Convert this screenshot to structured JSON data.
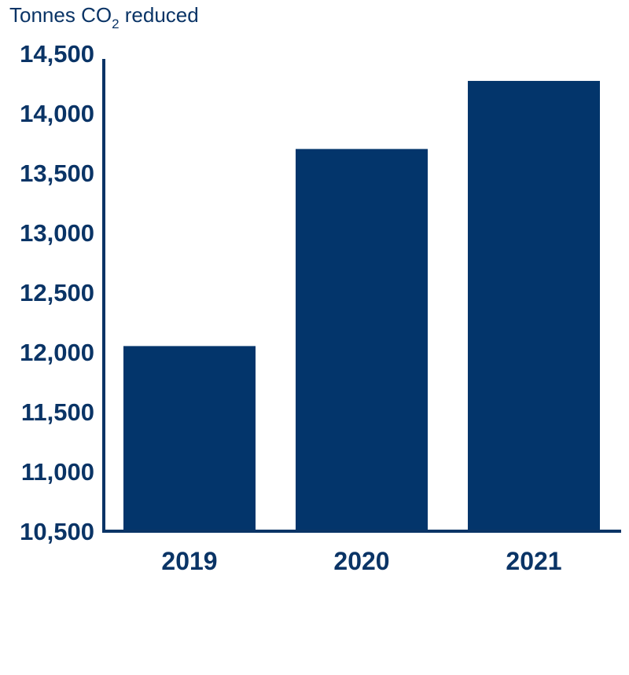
{
  "chart_data": {
    "type": "bar",
    "ylabel": {
      "prefix": "Tonnes CO",
      "subscript": "2",
      "suffix": " reduced"
    },
    "categories": [
      "2019",
      "2020",
      "2021"
    ],
    "values": [
      12050,
      13700,
      14270
    ],
    "ylim": [
      10500,
      14500
    ],
    "yticks": [
      10500,
      11000,
      11500,
      12000,
      12500,
      13000,
      13500,
      14000,
      14500
    ],
    "ytick_labels": [
      "10,500",
      "11,000",
      "11,500",
      "12,000",
      "12,500",
      "13,000",
      "13,500",
      "14,000",
      "14,500"
    ],
    "grid": false,
    "bar_color": "#03356b",
    "axis_color": "#0a3466",
    "text_color": "#0a3466"
  }
}
